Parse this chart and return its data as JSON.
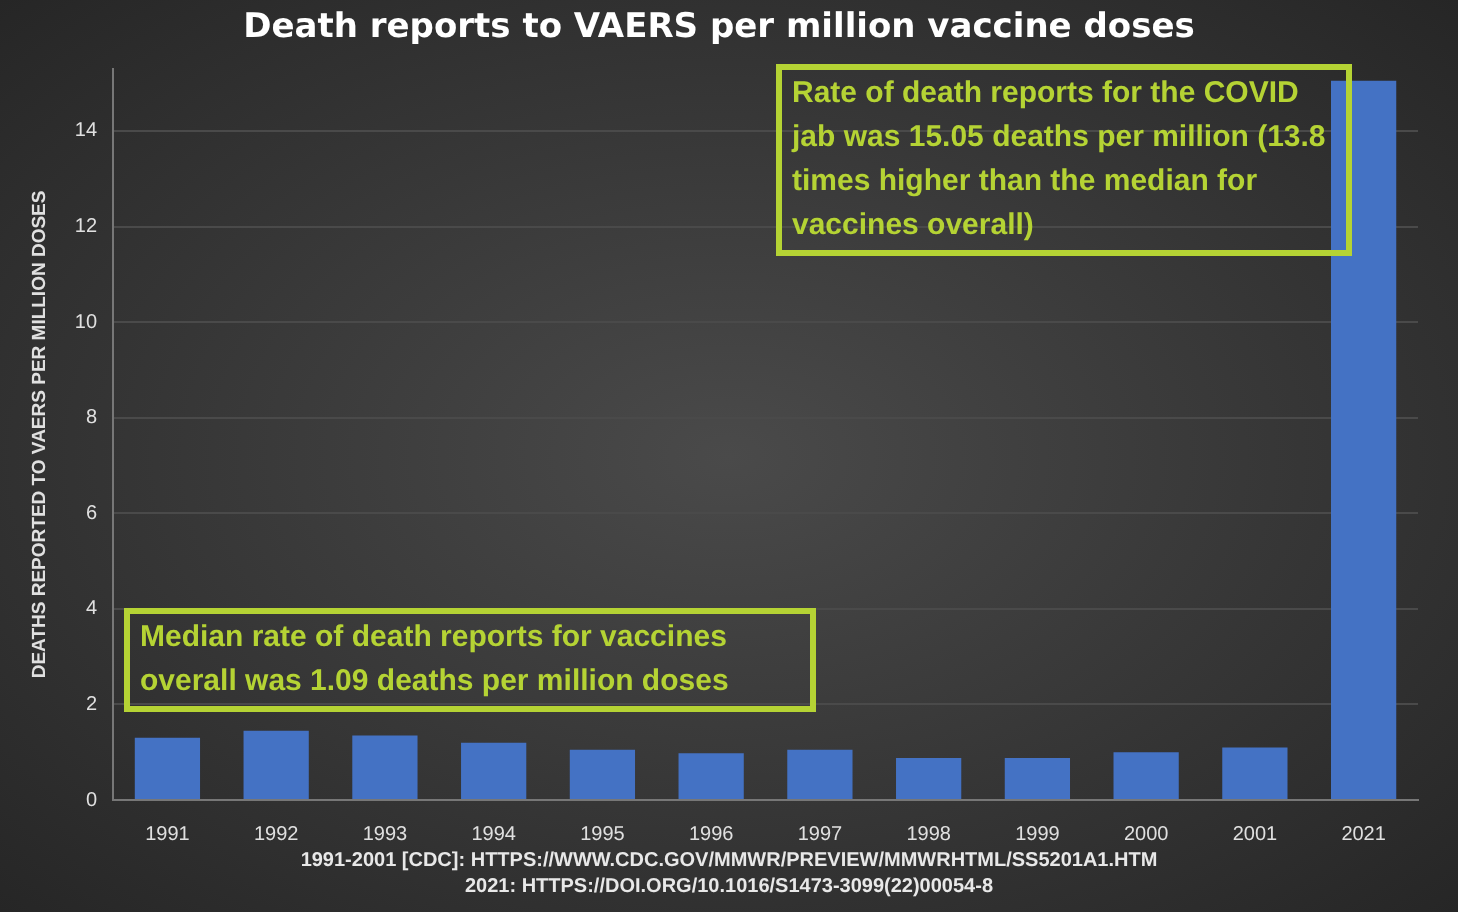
{
  "chart_data": {
    "type": "bar",
    "title": "Death reports to VAERS per million vaccine doses",
    "ylabel": "DEATHS REPORTED TO VAERS PER MILLION DOSES",
    "categories": [
      "1991",
      "1992",
      "1993",
      "1994",
      "1995",
      "1996",
      "1997",
      "1998",
      "1999",
      "2000",
      "2001",
      "2021"
    ],
    "values": [
      1.3,
      1.45,
      1.35,
      1.2,
      1.05,
      0.98,
      1.05,
      0.88,
      0.88,
      1.0,
      1.1,
      15.05
    ],
    "color": "#4472c4",
    "ylim": [
      0,
      15.3
    ],
    "yticks": [
      0,
      2,
      4,
      6,
      8,
      10,
      12,
      14
    ],
    "grid": "y",
    "legend": false,
    "annotations": [
      "Median rate of death reports for vaccines overall was 1.09 deaths per million doses",
      "Rate of death reports for the COVID jab was 15.05 deaths per million (13.8 times higher than the median for vaccines overall)",
      "1991-2001 [CDC]: HTTPS://WWW.CDC.GOV/MMWR/PREVIEW/MMWRHTML/SS5201A1.HTM",
      "2021: HTTPS://DOI.ORG/10.1016/S1473-3099(22)00054-8"
    ]
  }
}
